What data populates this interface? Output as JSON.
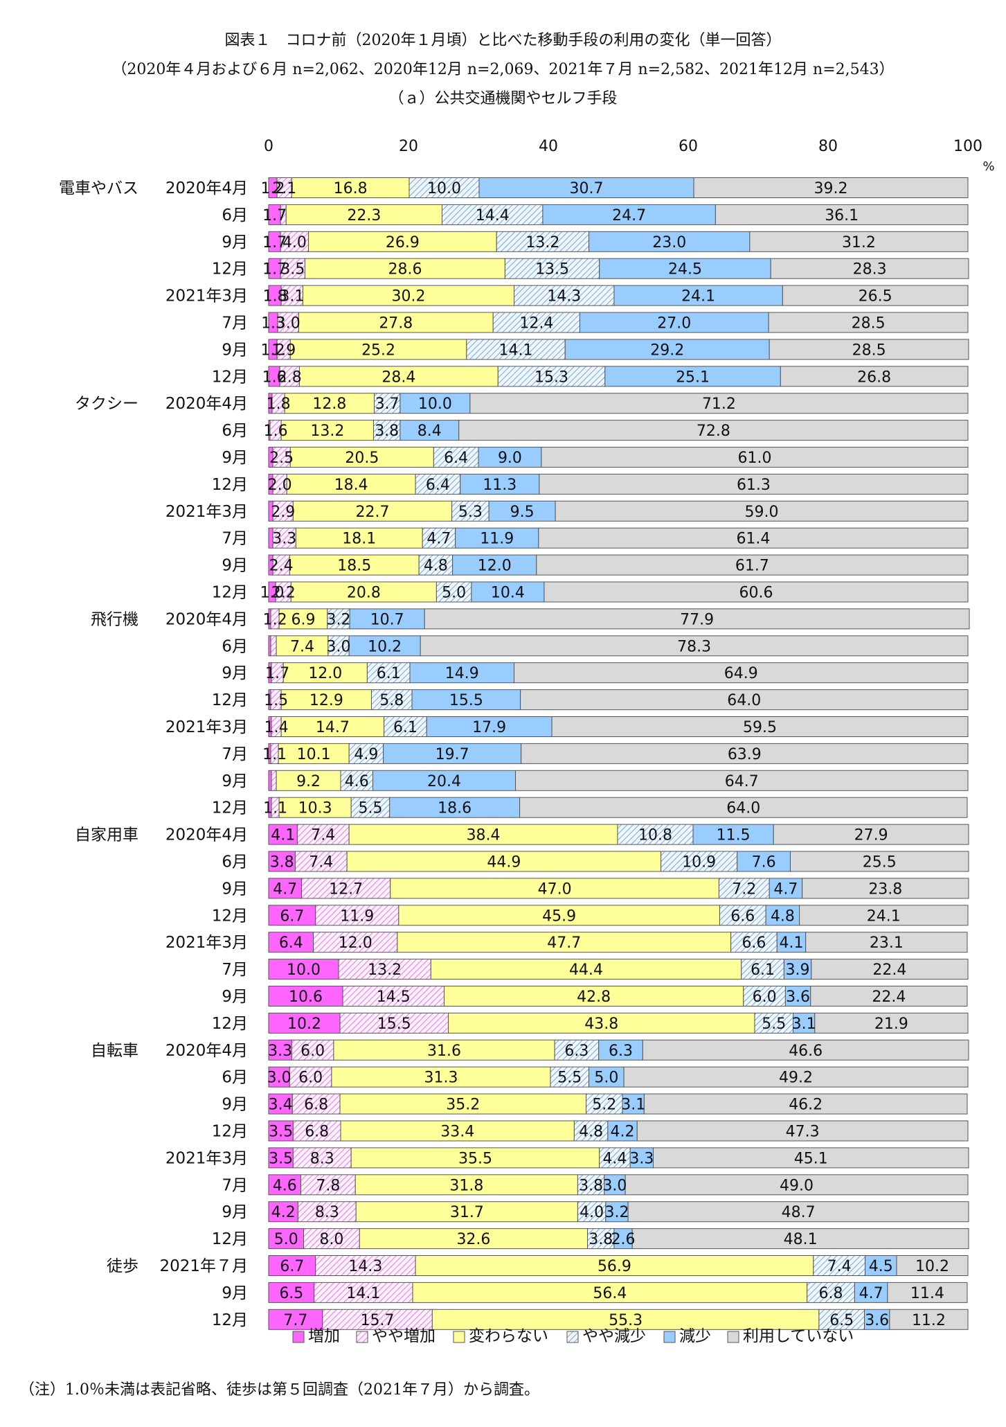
{
  "titles": {
    "line1": "図表１　コロナ前（2020年１月頃）と比べた移動手段の利用の変化（単一回答）",
    "line2": "（2020年４月および６月 n=2,062、2020年12月 n=2,069、2021年７月 n=2,582、2021年12月 n=2,543）",
    "line3": "（ａ）公共交通機関やセルフ手段"
  },
  "note": "（注）1.0％未満は表記省略、徒歩は第５回調査（2021年７月）から調査。",
  "chart_data": {
    "type": "bar",
    "orientation": "horizontal",
    "stacked": true,
    "xlim": [
      0,
      100
    ],
    "xticks": [
      0,
      20,
      40,
      60,
      80,
      100
    ],
    "unit": "%",
    "label_threshold": 1.0,
    "legend_position": "bottom",
    "series": [
      {
        "name": "増加",
        "color": "#ff66ff",
        "pattern": "solid"
      },
      {
        "name": "やや増加",
        "color": "#ff99ff",
        "pattern": "hatch"
      },
      {
        "name": "変わらない",
        "color": "#ffff99",
        "pattern": "solid"
      },
      {
        "name": "やや減少",
        "color": "#99ccff",
        "pattern": "hatch"
      },
      {
        "name": "減少",
        "color": "#99ccff",
        "pattern": "solid"
      },
      {
        "name": "利用していない",
        "color": "#d9d9d9",
        "pattern": "solid"
      }
    ],
    "groups": [
      {
        "name": "電車やバス",
        "rows": [
          {
            "label": "2020年4月",
            "values": [
              1.2,
              2.1,
              16.8,
              10.0,
              30.7,
              39.2
            ]
          },
          {
            "label": "6月",
            "values": [
              1.7,
              0.8,
              22.3,
              14.4,
              24.7,
              36.1
            ]
          },
          {
            "label": "9月",
            "values": [
              1.7,
              4.0,
              26.9,
              13.2,
              23.0,
              31.2
            ]
          },
          {
            "label": "12月",
            "values": [
              1.7,
              3.5,
              28.6,
              13.5,
              24.5,
              28.3
            ]
          },
          {
            "label": "2021年3月",
            "values": [
              1.8,
              3.1,
              30.2,
              14.3,
              24.1,
              26.5
            ]
          },
          {
            "label": "7月",
            "values": [
              1.3,
              3.0,
              27.8,
              12.4,
              27.0,
              28.5
            ]
          },
          {
            "label": "9月",
            "values": [
              1.2,
              1.9,
              25.2,
              14.1,
              29.2,
              28.5
            ]
          },
          {
            "label": "12月",
            "values": [
              1.6,
              2.8,
              28.4,
              15.3,
              25.1,
              26.8
            ]
          }
        ]
      },
      {
        "name": "タクシー",
        "rows": [
          {
            "label": "2020年4月",
            "values": [
              0.5,
              1.8,
              12.8,
              3.7,
              10.0,
              71.2
            ]
          },
          {
            "label": "6月",
            "values": [
              0.2,
              1.6,
              13.2,
              3.8,
              8.4,
              72.8
            ]
          },
          {
            "label": "9月",
            "values": [
              0.6,
              2.5,
              20.5,
              6.4,
              9.0,
              61.0
            ]
          },
          {
            "label": "12月",
            "values": [
              0.6,
              2.0,
              18.4,
              6.4,
              11.3,
              61.3
            ]
          },
          {
            "label": "2021年3月",
            "values": [
              0.6,
              2.9,
              22.7,
              5.3,
              9.5,
              59.0
            ]
          },
          {
            "label": "7月",
            "values": [
              0.6,
              3.3,
              18.1,
              4.7,
              11.9,
              61.4
            ]
          },
          {
            "label": "9月",
            "values": [
              0.6,
              2.4,
              18.5,
              4.8,
              12.0,
              61.7
            ]
          },
          {
            "label": "12月",
            "values": [
              1.0,
              2.2,
              20.8,
              5.0,
              10.4,
              60.6
            ]
          }
        ]
      },
      {
        "name": "飛行機",
        "rows": [
          {
            "label": "2020年4月",
            "values": [
              0.3,
              1.2,
              6.9,
              3.2,
              10.7,
              77.9
            ]
          },
          {
            "label": "6月",
            "values": [
              0.3,
              0.8,
              7.4,
              3.0,
              10.2,
              78.3
            ]
          },
          {
            "label": "9月",
            "values": [
              0.4,
              1.7,
              12.0,
              6.1,
              14.9,
              64.9
            ]
          },
          {
            "label": "12月",
            "values": [
              0.3,
              1.5,
              12.9,
              5.8,
              15.5,
              64.0
            ]
          },
          {
            "label": "2021年3月",
            "values": [
              0.4,
              1.4,
              14.7,
              6.1,
              17.9,
              59.5
            ]
          },
          {
            "label": "7月",
            "values": [
              0.3,
              1.1,
              10.1,
              4.9,
              19.7,
              63.9
            ]
          },
          {
            "label": "9月",
            "values": [
              0.4,
              0.7,
              9.2,
              4.6,
              20.4,
              64.7
            ]
          },
          {
            "label": "12月",
            "values": [
              0.4,
              1.1,
              10.3,
              5.5,
              18.6,
              64.0
            ]
          }
        ]
      },
      {
        "name": "自家用車",
        "rows": [
          {
            "label": "2020年4月",
            "values": [
              4.1,
              7.4,
              38.4,
              10.8,
              11.5,
              27.9
            ]
          },
          {
            "label": "6月",
            "values": [
              3.8,
              7.4,
              44.9,
              10.9,
              7.6,
              25.5
            ]
          },
          {
            "label": "9月",
            "values": [
              4.7,
              12.7,
              47.0,
              7.2,
              4.7,
              23.8
            ]
          },
          {
            "label": "12月",
            "values": [
              6.7,
              11.9,
              45.9,
              6.6,
              4.8,
              24.1
            ]
          },
          {
            "label": "2021年3月",
            "values": [
              6.4,
              12.0,
              47.7,
              6.6,
              4.1,
              23.1
            ]
          },
          {
            "label": "7月",
            "values": [
              10.0,
              13.2,
              44.4,
              6.1,
              3.9,
              22.4
            ]
          },
          {
            "label": "9月",
            "values": [
              10.6,
              14.5,
              42.8,
              6.0,
              3.6,
              22.4
            ]
          },
          {
            "label": "12月",
            "values": [
              10.2,
              15.5,
              43.8,
              5.5,
              3.1,
              21.9
            ]
          }
        ]
      },
      {
        "name": "自転車",
        "rows": [
          {
            "label": "2020年4月",
            "values": [
              3.3,
              6.0,
              31.6,
              6.3,
              6.3,
              46.6
            ]
          },
          {
            "label": "6月",
            "values": [
              3.0,
              6.0,
              31.3,
              5.5,
              5.0,
              49.2
            ]
          },
          {
            "label": "9月",
            "values": [
              3.4,
              6.8,
              35.2,
              5.2,
              3.1,
              46.2
            ]
          },
          {
            "label": "12月",
            "values": [
              3.5,
              6.8,
              33.4,
              4.8,
              4.2,
              47.3
            ]
          },
          {
            "label": "2021年3月",
            "values": [
              3.5,
              8.3,
              35.5,
              4.4,
              3.3,
              45.1
            ]
          },
          {
            "label": "7月",
            "values": [
              4.6,
              7.8,
              31.8,
              3.8,
              3.0,
              49.0
            ]
          },
          {
            "label": "9月",
            "values": [
              4.2,
              8.3,
              31.7,
              4.0,
              3.2,
              48.7
            ]
          },
          {
            "label": "12月",
            "values": [
              5.0,
              8.0,
              32.6,
              3.8,
              2.6,
              48.1
            ]
          }
        ]
      },
      {
        "name": "徒歩",
        "rows": [
          {
            "label": "2021年７月",
            "values": [
              6.7,
              14.3,
              56.9,
              7.4,
              4.5,
              10.2
            ]
          },
          {
            "label": "9月",
            "values": [
              6.5,
              14.1,
              56.4,
              6.8,
              4.7,
              11.4
            ]
          },
          {
            "label": "12月",
            "values": [
              7.7,
              15.7,
              55.3,
              6.5,
              3.6,
              11.2
            ]
          }
        ]
      }
    ]
  }
}
